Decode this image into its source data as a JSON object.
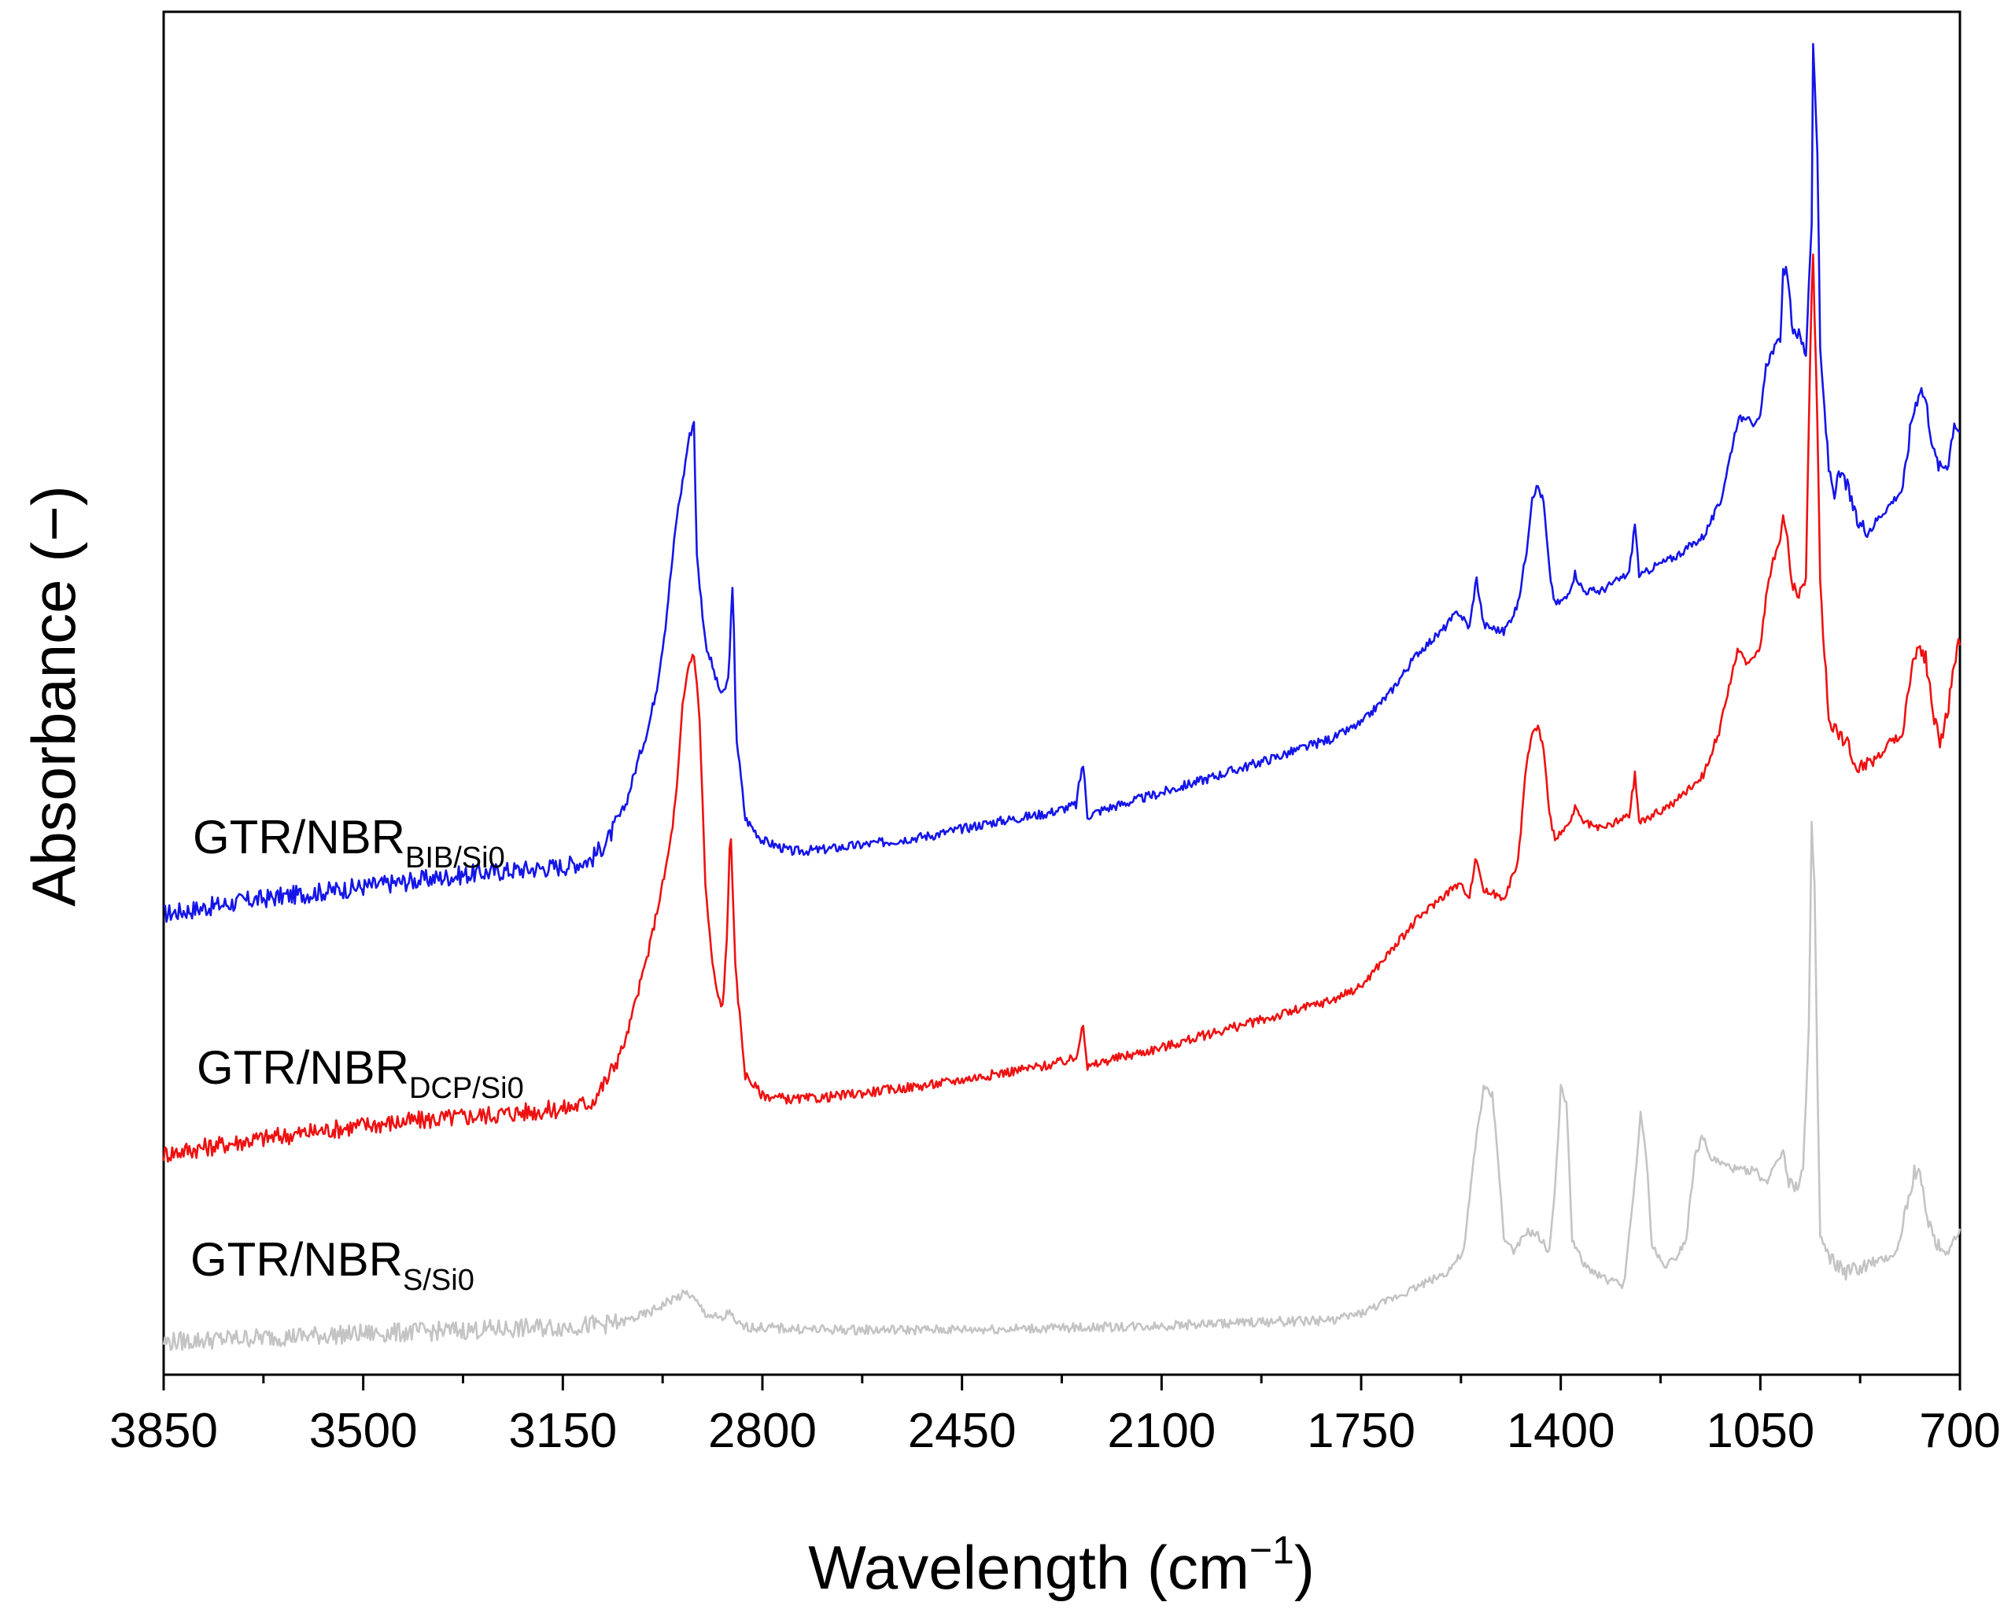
{
  "chart_data": {
    "type": "line",
    "title": "",
    "xlabel": "Wavelength (cm",
    "xlabel_sup": "−1",
    "xlabel_close": ")",
    "ylabel": "Absorbance (−)",
    "xlim": [
      3850,
      700
    ],
    "x_reversed": true,
    "ylim": [
      0,
      1
    ],
    "yticks_visible": false,
    "grid": false,
    "xticks": [
      "3850",
      "3500",
      "3150",
      "2800",
      "2450",
      "2100",
      "1750",
      "1400",
      "1050",
      "700"
    ],
    "series": [
      {
        "name": "GTR/NBR",
        "name_sub": "BIB/Si0",
        "color": "#1515e8",
        "points": [
          [
            3850,
            0.338
          ],
          [
            3700,
            0.348
          ],
          [
            3500,
            0.358
          ],
          [
            3300,
            0.368
          ],
          [
            3150,
            0.373
          ],
          [
            3100,
            0.378
          ],
          [
            3070,
            0.393
          ],
          [
            3040,
            0.418
          ],
          [
            3020,
            0.448
          ],
          [
            3000,
            0.475
          ],
          [
            2985,
            0.505
          ],
          [
            2970,
            0.55
          ],
          [
            2960,
            0.59
          ],
          [
            2950,
            0.63
          ],
          [
            2940,
            0.655
          ],
          [
            2930,
            0.685
          ],
          [
            2920,
            0.7
          ],
          [
            2915,
            0.6
          ],
          [
            2900,
            0.538
          ],
          [
            2880,
            0.508
          ],
          [
            2870,
            0.498
          ],
          [
            2860,
            0.51
          ],
          [
            2852,
            0.58
          ],
          [
            2846,
            0.47
          ],
          [
            2830,
            0.408
          ],
          [
            2800,
            0.392
          ],
          [
            2750,
            0.384
          ],
          [
            2700,
            0.385
          ],
          [
            2600,
            0.39
          ],
          [
            2500,
            0.396
          ],
          [
            2400,
            0.405
          ],
          [
            2300,
            0.412
          ],
          [
            2250,
            0.418
          ],
          [
            2238,
            0.45
          ],
          [
            2230,
            0.41
          ],
          [
            2200,
            0.415
          ],
          [
            2100,
            0.427
          ],
          [
            2000,
            0.44
          ],
          [
            1900,
            0.453
          ],
          [
            1800,
            0.467
          ],
          [
            1750,
            0.478
          ],
          [
            1700,
            0.5
          ],
          [
            1650,
            0.53
          ],
          [
            1610,
            0.545
          ],
          [
            1580,
            0.56
          ],
          [
            1560,
            0.548
          ],
          [
            1548,
            0.585
          ],
          [
            1535,
            0.55
          ],
          [
            1500,
            0.545
          ],
          [
            1475,
            0.565
          ],
          [
            1460,
            0.605
          ],
          [
            1450,
            0.645
          ],
          [
            1440,
            0.652
          ],
          [
            1430,
            0.64
          ],
          [
            1420,
            0.59
          ],
          [
            1410,
            0.565
          ],
          [
            1390,
            0.57
          ],
          [
            1375,
            0.588
          ],
          [
            1360,
            0.575
          ],
          [
            1330,
            0.575
          ],
          [
            1280,
            0.588
          ],
          [
            1270,
            0.625
          ],
          [
            1262,
            0.585
          ],
          [
            1240,
            0.592
          ],
          [
            1200,
            0.6
          ],
          [
            1150,
            0.615
          ],
          [
            1120,
            0.64
          ],
          [
            1100,
            0.68
          ],
          [
            1090,
            0.7
          ],
          [
            1070,
            0.705
          ],
          [
            1060,
            0.695
          ],
          [
            1050,
            0.702
          ],
          [
            1040,
            0.74
          ],
          [
            1030,
            0.75
          ],
          [
            1015,
            0.76
          ],
          [
            1010,
            0.81
          ],
          [
            1003,
            0.81
          ],
          [
            995,
            0.77
          ],
          [
            985,
            0.765
          ],
          [
            970,
            0.75
          ],
          [
            960,
            0.85
          ],
          [
            958,
            0.98
          ],
          [
            950,
            0.9
          ],
          [
            945,
            0.75
          ],
          [
            930,
            0.665
          ],
          [
            920,
            0.648
          ],
          [
            910,
            0.66
          ],
          [
            900,
            0.655
          ],
          [
            880,
            0.625
          ],
          [
            860,
            0.62
          ],
          [
            840,
            0.63
          ],
          [
            820,
            0.64
          ],
          [
            800,
            0.65
          ],
          [
            785,
            0.7
          ],
          [
            770,
            0.725
          ],
          [
            760,
            0.715
          ],
          [
            745,
            0.675
          ],
          [
            735,
            0.665
          ],
          [
            720,
            0.67
          ],
          [
            710,
            0.7
          ],
          [
            700,
            0.692
          ]
        ]
      },
      {
        "name": "GTR/NBR",
        "name_sub": "DCP/Si0",
        "color": "#ee1111",
        "points": [
          [
            3850,
            0.162
          ],
          [
            3700,
            0.172
          ],
          [
            3500,
            0.183
          ],
          [
            3300,
            0.19
          ],
          [
            3150,
            0.195
          ],
          [
            3100,
            0.2
          ],
          [
            3070,
            0.218
          ],
          [
            3040,
            0.245
          ],
          [
            3020,
            0.278
          ],
          [
            3000,
            0.31
          ],
          [
            2985,
            0.34
          ],
          [
            2970,
            0.37
          ],
          [
            2960,
            0.395
          ],
          [
            2950,
            0.43
          ],
          [
            2940,
            0.49
          ],
          [
            2930,
            0.52
          ],
          [
            2920,
            0.53
          ],
          [
            2910,
            0.48
          ],
          [
            2900,
            0.36
          ],
          [
            2890,
            0.31
          ],
          [
            2880,
            0.28
          ],
          [
            2870,
            0.27
          ],
          [
            2862,
            0.32
          ],
          [
            2856,
            0.41
          ],
          [
            2848,
            0.3
          ],
          [
            2830,
            0.22
          ],
          [
            2800,
            0.205
          ],
          [
            2750,
            0.202
          ],
          [
            2700,
            0.203
          ],
          [
            2600,
            0.208
          ],
          [
            2500,
            0.213
          ],
          [
            2400,
            0.22
          ],
          [
            2300,
            0.227
          ],
          [
            2250,
            0.232
          ],
          [
            2238,
            0.26
          ],
          [
            2230,
            0.225
          ],
          [
            2200,
            0.23
          ],
          [
            2100,
            0.24
          ],
          [
            2000,
            0.252
          ],
          [
            1900,
            0.263
          ],
          [
            1800,
            0.275
          ],
          [
            1750,
            0.285
          ],
          [
            1700,
            0.31
          ],
          [
            1650,
            0.335
          ],
          [
            1610,
            0.35
          ],
          [
            1580,
            0.36
          ],
          [
            1560,
            0.352
          ],
          [
            1548,
            0.38
          ],
          [
            1535,
            0.355
          ],
          [
            1500,
            0.35
          ],
          [
            1475,
            0.375
          ],
          [
            1460,
            0.45
          ],
          [
            1450,
            0.47
          ],
          [
            1440,
            0.475
          ],
          [
            1430,
            0.46
          ],
          [
            1420,
            0.41
          ],
          [
            1410,
            0.395
          ],
          [
            1390,
            0.4
          ],
          [
            1375,
            0.415
          ],
          [
            1360,
            0.405
          ],
          [
            1330,
            0.4
          ],
          [
            1280,
            0.41
          ],
          [
            1270,
            0.44
          ],
          [
            1262,
            0.405
          ],
          [
            1240,
            0.41
          ],
          [
            1200,
            0.42
          ],
          [
            1150,
            0.44
          ],
          [
            1120,
            0.475
          ],
          [
            1100,
            0.515
          ],
          [
            1090,
            0.53
          ],
          [
            1070,
            0.522
          ],
          [
            1050,
            0.535
          ],
          [
            1040,
            0.57
          ],
          [
            1030,
            0.595
          ],
          [
            1015,
            0.612
          ],
          [
            1010,
            0.63
          ],
          [
            1003,
            0.615
          ],
          [
            995,
            0.58
          ],
          [
            985,
            0.575
          ],
          [
            970,
            0.58
          ],
          [
            962,
            0.76
          ],
          [
            958,
            0.83
          ],
          [
            950,
            0.7
          ],
          [
            945,
            0.58
          ],
          [
            930,
            0.48
          ],
          [
            920,
            0.475
          ],
          [
            900,
            0.465
          ],
          [
            880,
            0.445
          ],
          [
            860,
            0.45
          ],
          [
            840,
            0.455
          ],
          [
            820,
            0.465
          ],
          [
            800,
            0.47
          ],
          [
            785,
            0.52
          ],
          [
            770,
            0.535
          ],
          [
            760,
            0.525
          ],
          [
            745,
            0.48
          ],
          [
            735,
            0.465
          ],
          [
            720,
            0.49
          ],
          [
            710,
            0.52
          ],
          [
            700,
            0.54
          ]
        ]
      },
      {
        "name": "GTR/NBR",
        "name_sub": "S/Si0",
        "color": "#c4c4c4",
        "points": [
          [
            3850,
            0.024
          ],
          [
            3700,
            0.027
          ],
          [
            3500,
            0.03
          ],
          [
            3300,
            0.033
          ],
          [
            3150,
            0.035
          ],
          [
            3050,
            0.038
          ],
          [
            3000,
            0.045
          ],
          [
            2960,
            0.055
          ],
          [
            2930,
            0.06
          ],
          [
            2920,
            0.055
          ],
          [
            2900,
            0.045
          ],
          [
            2870,
            0.04
          ],
          [
            2856,
            0.048
          ],
          [
            2850,
            0.038
          ],
          [
            2830,
            0.035
          ],
          [
            2700,
            0.033
          ],
          [
            2500,
            0.033
          ],
          [
            2300,
            0.034
          ],
          [
            2100,
            0.036
          ],
          [
            1900,
            0.039
          ],
          [
            1800,
            0.04
          ],
          [
            1750,
            0.045
          ],
          [
            1700,
            0.055
          ],
          [
            1650,
            0.065
          ],
          [
            1600,
            0.075
          ],
          [
            1570,
            0.09
          ],
          [
            1548,
            0.175
          ],
          [
            1535,
            0.21
          ],
          [
            1520,
            0.205
          ],
          [
            1510,
            0.16
          ],
          [
            1500,
            0.1
          ],
          [
            1480,
            0.09
          ],
          [
            1460,
            0.105
          ],
          [
            1440,
            0.102
          ],
          [
            1420,
            0.09
          ],
          [
            1408,
            0.15
          ],
          [
            1400,
            0.21
          ],
          [
            1390,
            0.2
          ],
          [
            1380,
            0.1
          ],
          [
            1360,
            0.08
          ],
          [
            1320,
            0.07
          ],
          [
            1290,
            0.065
          ],
          [
            1275,
            0.12
          ],
          [
            1260,
            0.19
          ],
          [
            1250,
            0.16
          ],
          [
            1240,
            0.095
          ],
          [
            1220,
            0.08
          ],
          [
            1200,
            0.085
          ],
          [
            1180,
            0.1
          ],
          [
            1165,
            0.16
          ],
          [
            1150,
            0.175
          ],
          [
            1140,
            0.16
          ],
          [
            1120,
            0.155
          ],
          [
            1090,
            0.15
          ],
          [
            1060,
            0.15
          ],
          [
            1040,
            0.14
          ],
          [
            1025,
            0.155
          ],
          [
            1010,
            0.165
          ],
          [
            1000,
            0.14
          ],
          [
            985,
            0.14
          ],
          [
            975,
            0.15
          ],
          [
            965,
            0.25
          ],
          [
            960,
            0.4
          ],
          [
            955,
            0.36
          ],
          [
            950,
            0.22
          ],
          [
            945,
            0.1
          ],
          [
            930,
            0.085
          ],
          [
            900,
            0.075
          ],
          [
            860,
            0.08
          ],
          [
            830,
            0.085
          ],
          [
            810,
            0.09
          ],
          [
            795,
            0.12
          ],
          [
            780,
            0.15
          ],
          [
            770,
            0.145
          ],
          [
            760,
            0.12
          ],
          [
            745,
            0.1
          ],
          [
            730,
            0.09
          ],
          [
            715,
            0.095
          ],
          [
            700,
            0.105
          ]
        ]
      }
    ]
  }
}
